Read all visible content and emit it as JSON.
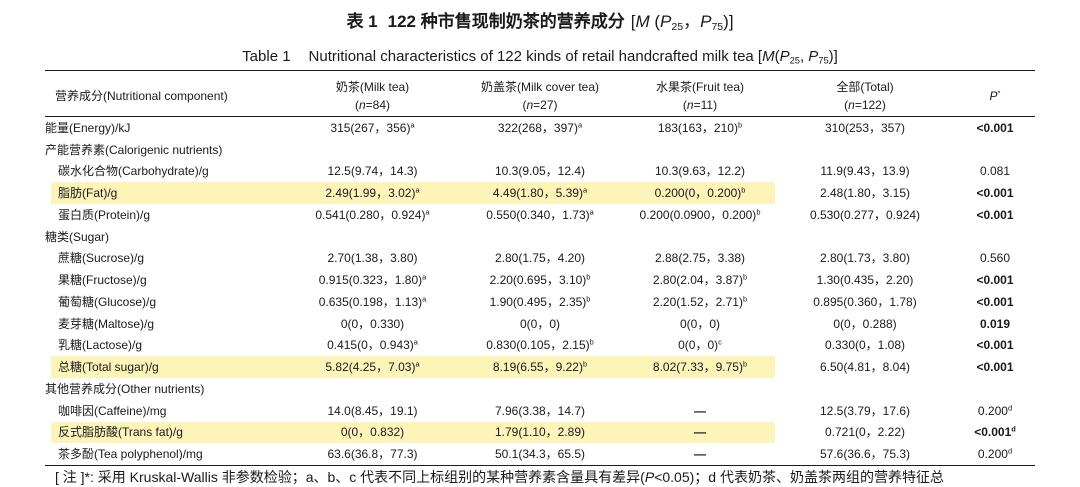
{
  "colors": {
    "highlight": "#fcf4b8",
    "rule": "#1e1e1e"
  },
  "title": {
    "zh_label": "表 1",
    "zh_text": "122 种市售现制奶茶的营养成分",
    "zh_stat": [
      {
        "t": "["
      },
      {
        "t": "M",
        "s": "i"
      },
      {
        "t": " ("
      },
      {
        "t": "P",
        "s": "i"
      },
      {
        "t": "25",
        "s": "sub"
      },
      {
        "t": "，"
      },
      {
        "t": "P",
        "s": "i"
      },
      {
        "t": "75",
        "s": "sub"
      },
      {
        "t": ")]"
      }
    ],
    "en_label": "Table 1",
    "en_text": [
      {
        "t": "Nutritional characteristics of 122 kinds of retail handcrafted milk tea ["
      },
      {
        "t": "M",
        "s": "i"
      },
      {
        "t": "("
      },
      {
        "t": "P",
        "s": "i"
      },
      {
        "t": "25",
        "s": "sub"
      },
      {
        "t": ", "
      },
      {
        "t": "P",
        "s": "i"
      },
      {
        "t": "75",
        "s": "sub"
      },
      {
        "t": ")]"
      }
    ]
  },
  "columns": [
    {
      "lines": [
        [
          {
            "t": "营养成分(Nutritional component)"
          }
        ]
      ]
    },
    {
      "lines": [
        [
          {
            "t": "奶茶(Milk tea)"
          }
        ],
        [
          {
            "t": "("
          },
          {
            "t": "n",
            "s": "i"
          },
          {
            "t": "=84)"
          }
        ]
      ]
    },
    {
      "lines": [
        [
          {
            "t": "奶盖茶(Milk cover tea)"
          }
        ],
        [
          {
            "t": "("
          },
          {
            "t": "n",
            "s": "i"
          },
          {
            "t": "=27)"
          }
        ]
      ]
    },
    {
      "lines": [
        [
          {
            "t": "水果茶(Fruit tea)"
          }
        ],
        [
          {
            "t": "("
          },
          {
            "t": "n",
            "s": "i"
          },
          {
            "t": "=11)"
          }
        ]
      ]
    },
    {
      "lines": [
        [
          {
            "t": "全部(Total)"
          }
        ],
        [
          {
            "t": "("
          },
          {
            "t": "n",
            "s": "i"
          },
          {
            "t": "=122)"
          }
        ]
      ]
    },
    {
      "lines": [
        [
          {
            "t": "P",
            "s": "i"
          },
          {
            "t": "*",
            "s": "sup"
          }
        ]
      ]
    }
  ],
  "rows": [
    {
      "label": "能量(Energy)/kJ",
      "cells": [
        {
          "v": "315(267，356)",
          "sup": "a"
        },
        {
          "v": "322(268，397)",
          "sup": "a"
        },
        {
          "v": "183(163，210)",
          "sup": "b"
        },
        {
          "v": "310(253，357)"
        }
      ],
      "p": {
        "v": "<0.001",
        "bold": true
      }
    },
    {
      "label": "产能营养素(Calorigenic nutrients)",
      "section": true
    },
    {
      "label": "碳水化合物(Carbohydrate)/g",
      "indent": true,
      "cells": [
        {
          "v": "12.5(9.74，14.3)"
        },
        {
          "v": "10.3(9.05，12.4)"
        },
        {
          "v": "10.3(9.63，12.2)"
        },
        {
          "v": "11.9(9.43，13.9)"
        }
      ],
      "p": {
        "v": "0.081"
      }
    },
    {
      "label": "脂肪(Fat)/g",
      "indent": true,
      "highlight": true,
      "cells": [
        {
          "v": "2.49(1.99，3.02)",
          "sup": "a"
        },
        {
          "v": "4.49(1.80，5.39)",
          "sup": "a"
        },
        {
          "v": "0.200(0，0.200)",
          "sup": "b"
        },
        {
          "v": "2.48(1.80，3.15)"
        }
      ],
      "p": {
        "v": "<0.001",
        "bold": true
      }
    },
    {
      "label": "蛋白质(Protein)/g",
      "indent": true,
      "cells": [
        {
          "v": "0.541(0.280，0.924)",
          "sup": "a"
        },
        {
          "v": "0.550(0.340，1.73)",
          "sup": "a"
        },
        {
          "v": "0.200(0.0900，0.200)",
          "sup": "b"
        },
        {
          "v": "0.530(0.277，0.924)"
        }
      ],
      "p": {
        "v": "<0.001",
        "bold": true
      }
    },
    {
      "label": "糖类(Sugar)",
      "section": true
    },
    {
      "label": "蔗糖(Sucrose)/g",
      "indent": true,
      "cells": [
        {
          "v": "2.70(1.38，3.80)"
        },
        {
          "v": "2.80(1.75，4.20)"
        },
        {
          "v": "2.88(2.75，3.38)"
        },
        {
          "v": "2.80(1.73，3.80)"
        }
      ],
      "p": {
        "v": "0.560"
      }
    },
    {
      "label": "果糖(Fructose)/g",
      "indent": true,
      "cells": [
        {
          "v": "0.915(0.323，1.80)",
          "sup": "a"
        },
        {
          "v": "2.20(0.695，3.10)",
          "sup": "b"
        },
        {
          "v": "2.80(2.04，3.87)",
          "sup": "b"
        },
        {
          "v": "1.30(0.435，2.20)"
        }
      ],
      "p": {
        "v": "<0.001",
        "bold": true
      }
    },
    {
      "label": "葡萄糖(Glucose)/g",
      "indent": true,
      "cells": [
        {
          "v": "0.635(0.198，1.13)",
          "sup": "a"
        },
        {
          "v": "1.90(0.495，2.35)",
          "sup": "b"
        },
        {
          "v": "2.20(1.52，2.71)",
          "sup": "b"
        },
        {
          "v": "0.895(0.360，1.78)"
        }
      ],
      "p": {
        "v": "<0.001",
        "bold": true
      }
    },
    {
      "label": "麦芽糖(Maltose)/g",
      "indent": true,
      "cells": [
        {
          "v": "0(0，0.330)"
        },
        {
          "v": "0(0，0)"
        },
        {
          "v": "0(0，0)"
        },
        {
          "v": "0(0，0.288)"
        }
      ],
      "p": {
        "v": "0.019",
        "bold": true
      }
    },
    {
      "label": "乳糖(Lactose)/g",
      "indent": true,
      "cells": [
        {
          "v": "0.415(0，0.943)",
          "sup": "a"
        },
        {
          "v": "0.830(0.105，2.15)",
          "sup": "b"
        },
        {
          "v": "0(0，0)",
          "sup": "c"
        },
        {
          "v": "0.330(0，1.08)"
        }
      ],
      "p": {
        "v": "<0.001",
        "bold": true
      }
    },
    {
      "label": "总糖(Total sugar)/g",
      "indent": true,
      "highlight": true,
      "cells": [
        {
          "v": "5.82(4.25，7.03)",
          "sup": "a"
        },
        {
          "v": "8.19(6.55，9.22)",
          "sup": "b"
        },
        {
          "v": "8.02(7.33，9.75)",
          "sup": "b"
        },
        {
          "v": "6.50(4.81，8.04)"
        }
      ],
      "p": {
        "v": "<0.001",
        "bold": true
      }
    },
    {
      "label": "其他营养成分(Other nutrients)",
      "section": true
    },
    {
      "label": "咖啡因(Caffeine)/mg",
      "indent": true,
      "cells": [
        {
          "v": "14.0(8.45，19.1)"
        },
        {
          "v": "7.96(3.38，14.7)"
        },
        {
          "v": "—",
          "bold": true
        },
        {
          "v": "12.5(3.79，17.6)"
        }
      ],
      "p": {
        "v": "0.200",
        "sup": "d"
      }
    },
    {
      "label": "反式脂肪酸(Trans fat)/g",
      "indent": true,
      "highlight": true,
      "cells": [
        {
          "v": "0(0，0.832)"
        },
        {
          "v": "1.79(1.10，2.89)"
        },
        {
          "v": "—",
          "bold": true
        },
        {
          "v": "0.721(0，2.22)"
        }
      ],
      "p": {
        "v": "<0.001",
        "sup": "d",
        "bold": true
      }
    },
    {
      "label": "茶多酚(Tea polyphenol)/mg",
      "indent": true,
      "cells": [
        {
          "v": "63.6(36.8，77.3)"
        },
        {
          "v": "50.1(34.3，65.5)"
        },
        {
          "v": "—",
          "bold": true
        },
        {
          "v": "57.6(36.6，75.3)"
        }
      ],
      "p": {
        "v": "0.200",
        "sup": "d"
      }
    }
  ],
  "footnote": [
    {
      "t": "[ 注 ]*: 采用 Kruskal-Wallis 非参数检验；a、b、c 代表不同上标组别的某种营养素含量具有差异("
    },
    {
      "t": "P",
      "s": "i"
    },
    {
      "t": "<0.05)；d 代表奶茶、奶盖茶两组的营养特征总"
    }
  ]
}
